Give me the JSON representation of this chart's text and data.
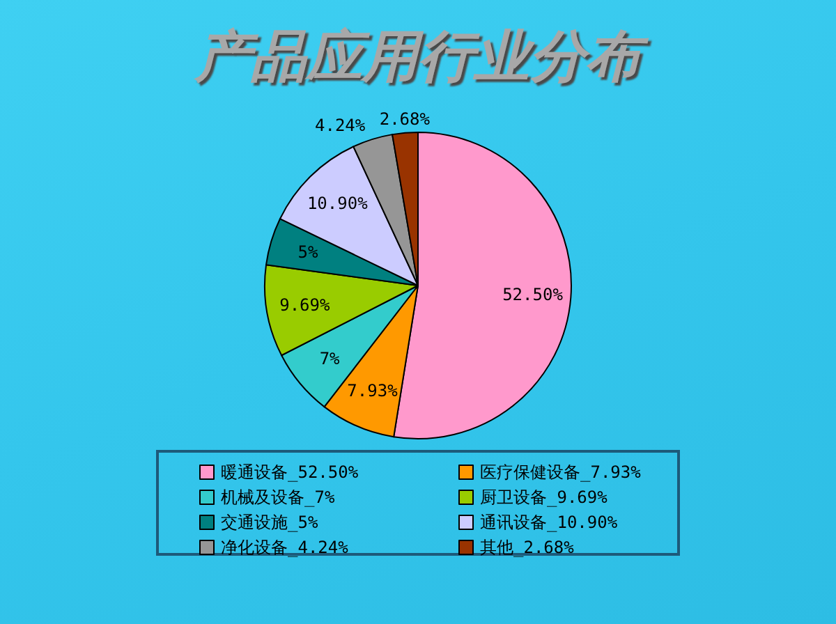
{
  "chart_data": {
    "type": "pie",
    "title": "产品应用行业分布",
    "categories": [
      "暖通设备_52.50%",
      "医疗保健设备_7.93%",
      "机械及设备_7%",
      "厨卫设备_9.69%",
      "交通设施_5%",
      "通讯设备_10.90%",
      "净化设备_4.24%",
      "其他_2.68%"
    ],
    "values": [
      52.5,
      7.93,
      7,
      9.69,
      5,
      10.9,
      4.24,
      2.68
    ],
    "value_labels": [
      "52.50%",
      "7.93%",
      "7%",
      "9.69%",
      "5%",
      "10.90%",
      "4.24%",
      "2.68%"
    ],
    "colors": [
      "#ff99cc",
      "#ff9900",
      "#33cccc",
      "#99cc00",
      "#008080",
      "#ccccff",
      "#969696",
      "#993300"
    ],
    "legend": "bottom"
  }
}
